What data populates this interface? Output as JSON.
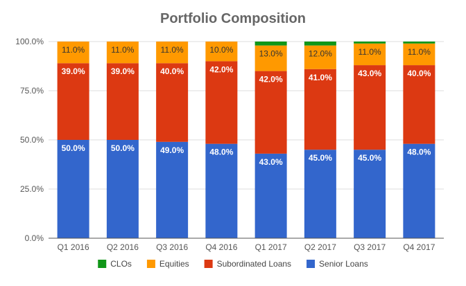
{
  "chart_data": {
    "type": "bar",
    "stacked": true,
    "title": "Portfolio Composition",
    "categories": [
      "Q1 2016",
      "Q2 2016",
      "Q3 2016",
      "Q4 2016",
      "Q1 2017",
      "Q2 2017",
      "Q3 2017",
      "Q4 2017"
    ],
    "series": [
      {
        "name": "Senior Loans",
        "color": "#3366cc",
        "label_color": "#ffffff",
        "values": [
          50,
          50,
          49,
          48,
          43,
          45,
          45,
          48
        ],
        "labels": [
          "50.0%",
          "50.0%",
          "49.0%",
          "48.0%",
          "43.0%",
          "45.0%",
          "45.0%",
          "48.0%"
        ]
      },
      {
        "name": "Subordinated Loans",
        "color": "#dc3912",
        "label_color": "#ffffff",
        "values": [
          39,
          39,
          40,
          42,
          42,
          41,
          43,
          40
        ],
        "labels": [
          "39.0%",
          "39.0%",
          "40.0%",
          "42.0%",
          "42.0%",
          "41.0%",
          "43.0%",
          "40.0%"
        ]
      },
      {
        "name": "Equities",
        "color": "#ff9900",
        "label_color": "#333333",
        "values": [
          11,
          11,
          11,
          10,
          13,
          12,
          11,
          11
        ],
        "labels": [
          "11.0%",
          "11.0%",
          "11.0%",
          "10.0%",
          "13.0%",
          "12.0%",
          "11.0%",
          "11.0%"
        ]
      },
      {
        "name": "CLOs",
        "color": "#109618",
        "label_color": "#ffffff",
        "values": [
          0,
          0,
          0,
          0,
          2,
          2,
          1,
          1
        ],
        "labels": [
          "",
          "",
          "",
          "",
          "",
          "",
          "",
          ""
        ]
      }
    ],
    "legend_order": [
      "CLOs",
      "Equities",
      "Subordinated Loans",
      "Senior Loans"
    ],
    "y_ticks": [
      "0.0%",
      "25.0%",
      "50.0%",
      "75.0%",
      "100.0%"
    ],
    "y_tick_values": [
      0,
      25,
      50,
      75,
      100
    ],
    "ylim": [
      0,
      100
    ],
    "grid": true,
    "legend_position": "bottom"
  }
}
